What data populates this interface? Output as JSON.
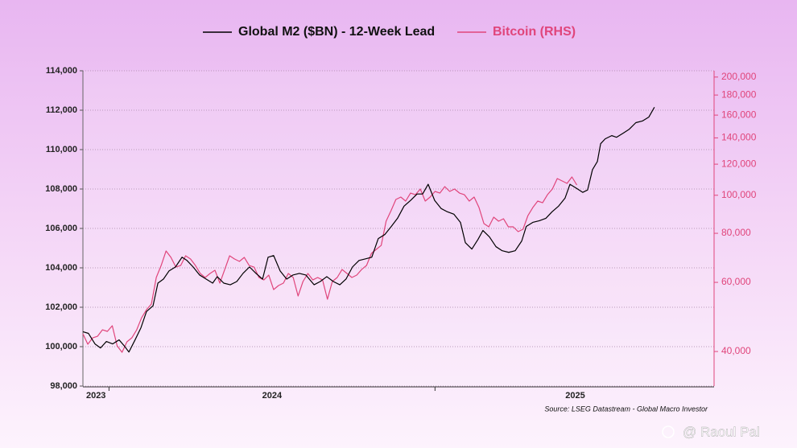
{
  "chart_data": {
    "type": "line",
    "legend": "top",
    "source": "Source: LSEG Datastream - Global Macro Investor",
    "watermark": "@ Raoul Pal",
    "grid": true,
    "xlim": [
      2023.92,
      2025.856
    ],
    "xticks": [
      {
        "value": 2023.96,
        "label": "2023"
      },
      {
        "value": 2024.5,
        "label": "2024"
      },
      {
        "value": 2025.43,
        "label": "2025"
      }
    ],
    "x_minor_ticks": [
      2024,
      2025
    ],
    "ylim": [
      98000,
      114000
    ],
    "yticks": [
      {
        "value": 98000,
        "label": "98,000"
      },
      {
        "value": 100000,
        "label": "100,000"
      },
      {
        "value": 102000,
        "label": "102,000"
      },
      {
        "value": 104000,
        "label": "104,000"
      },
      {
        "value": 106000,
        "label": "106,000"
      },
      {
        "value": 108000,
        "label": "108,000"
      },
      {
        "value": 110000,
        "label": "110,000"
      },
      {
        "value": 112000,
        "label": "112,000"
      },
      {
        "value": 114000,
        "label": "114,000"
      }
    ],
    "y2lim": [
      32660,
      207500
    ],
    "y2log": true,
    "y2color": "#e0457b",
    "y2ticks": [
      {
        "value": 40000,
        "label": "40,000"
      },
      {
        "value": 60000,
        "label": "60,000"
      },
      {
        "value": 80000,
        "label": "80,000"
      },
      {
        "value": 100000,
        "label": "100,000"
      },
      {
        "value": 120000,
        "label": "120,000"
      },
      {
        "value": 140000,
        "label": "140,000"
      },
      {
        "value": 160000,
        "label": "160,000"
      },
      {
        "value": 180000,
        "label": "180,000"
      },
      {
        "value": 200000,
        "label": "200,000"
      }
    ],
    "series": [
      {
        "name": "Global M2 ($BN) - 12-Week Lead",
        "color": "#000000",
        "x": [
          2023.92,
          2023.937,
          2023.957,
          2023.974,
          2023.992,
          2024.011,
          2024.031,
          2024.048,
          2024.061,
          2024.08,
          2024.098,
          2024.115,
          2024.135,
          2024.15,
          2024.167,
          2024.184,
          2024.204,
          2024.224,
          2024.239,
          2024.258,
          2024.278,
          2024.298,
          2024.318,
          2024.332,
          2024.352,
          2024.372,
          2024.392,
          2024.411,
          2024.431,
          2024.451,
          2024.471,
          2024.488,
          2024.505,
          2024.525,
          2024.545,
          2024.564,
          2024.584,
          2024.604,
          2024.629,
          2024.648,
          2024.668,
          2024.688,
          2024.708,
          2024.727,
          2024.747,
          2024.767,
          2024.787,
          2024.806,
          2024.826,
          2024.846,
          2024.866,
          2024.885,
          2024.905,
          2024.925,
          2024.945,
          2024.962,
          2024.979,
          2024.999,
          2025.019,
          2025.038,
          2025.058,
          2025.078,
          2025.093,
          2025.113,
          2025.132,
          2025.147,
          2025.167,
          2025.187,
          2025.206,
          2025.226,
          2025.246,
          2025.266,
          2025.28,
          2025.3,
          2025.32,
          2025.34,
          2025.359,
          2025.379,
          2025.399,
          2025.414,
          2025.434,
          2025.453,
          2025.468,
          2025.483,
          2025.498,
          2025.508,
          2025.522,
          2025.542,
          2025.557,
          2025.577,
          2025.596,
          2025.616,
          2025.636,
          2025.656,
          2025.673
        ],
        "values": [
          100756,
          100673,
          100139,
          99933,
          100262,
          100139,
          100344,
          100015,
          99727,
          100344,
          100961,
          101784,
          102072,
          103224,
          103429,
          103840,
          104046,
          104540,
          104375,
          104046,
          103635,
          103429,
          103224,
          103553,
          103224,
          103141,
          103306,
          103717,
          104046,
          103717,
          103429,
          104540,
          104622,
          103840,
          103429,
          103635,
          103717,
          103635,
          103141,
          103306,
          103553,
          103306,
          103141,
          103429,
          104046,
          104375,
          104457,
          104540,
          105486,
          105691,
          106103,
          106514,
          107131,
          107419,
          107748,
          107748,
          108241,
          107419,
          107007,
          106843,
          106720,
          106308,
          105280,
          104951,
          105445,
          105897,
          105568,
          105074,
          104869,
          104786,
          104869,
          105362,
          106103,
          106308,
          106391,
          106514,
          106843,
          107131,
          107542,
          108241,
          108036,
          107830,
          107953,
          108982,
          109393,
          110298,
          110545,
          110709,
          110627,
          110833,
          111038,
          111367,
          111450,
          111655,
          112149
        ]
      },
      {
        "name": "Bitcoin (RHS)",
        "color": "#e0457b",
        "axis": "y2",
        "x": [
          2023.92,
          2023.935,
          2023.95,
          2023.965,
          2023.98,
          2023.995,
          2024.01,
          2024.025,
          2024.04,
          2024.055,
          2024.07,
          2024.085,
          2024.1,
          2024.115,
          2024.13,
          2024.145,
          2024.16,
          2024.175,
          2024.19,
          2024.205,
          2024.22,
          2024.235,
          2024.25,
          2024.265,
          2024.28,
          2024.295,
          2024.31,
          2024.325,
          2024.34,
          2024.355,
          2024.37,
          2024.385,
          2024.4,
          2024.415,
          2024.43,
          2024.445,
          2024.46,
          2024.475,
          2024.49,
          2024.505,
          2024.52,
          2024.535,
          2024.55,
          2024.565,
          2024.58,
          2024.595,
          2024.61,
          2024.625,
          2024.64,
          2024.655,
          2024.67,
          2024.685,
          2024.7,
          2024.715,
          2024.73,
          2024.745,
          2024.76,
          2024.775,
          2024.79,
          2024.805,
          2024.82,
          2024.835,
          2024.85,
          2024.865,
          2024.88,
          2024.895,
          2024.91,
          2024.925,
          2024.94,
          2024.955,
          2024.97,
          2024.985,
          2025.0,
          2025.015,
          2025.03,
          2025.045,
          2025.06,
          2025.075,
          2025.09,
          2025.105,
          2025.12,
          2025.135,
          2025.15,
          2025.165,
          2025.18,
          2025.195,
          2025.21,
          2025.225,
          2025.24,
          2025.255,
          2025.27,
          2025.285,
          2025.3,
          2025.315,
          2025.33,
          2025.345,
          2025.36,
          2025.375,
          2025.39,
          2025.405,
          2025.42,
          2025.435
        ],
        "values": [
          44380,
          41740,
          43340,
          43750,
          45430,
          45010,
          46520,
          41340,
          39810,
          42330,
          43340,
          45430,
          48760,
          51120,
          52840,
          61740,
          66260,
          72130,
          69460,
          65640,
          66260,
          70120,
          68810,
          66260,
          63210,
          61740,
          63210,
          64410,
          59730,
          64710,
          70120,
          68810,
          67840,
          69460,
          66260,
          65640,
          61740,
          60860,
          62620,
          57520,
          58890,
          59730,
          63210,
          61740,
          55390,
          60300,
          63210,
          60860,
          61740,
          60860,
          54350,
          60300,
          61740,
          64710,
          63210,
          61740,
          62620,
          64710,
          66260,
          71120,
          72820,
          74550,
          85890,
          91320,
          97550,
          98940,
          96640,
          101300,
          100350,
          103720,
          96640,
          98940,
          102270,
          101300,
          105200,
          102270,
          103720,
          101300,
          100350,
          96640,
          98940,
          93050,
          84680,
          83100,
          87940,
          85890,
          87120,
          83100,
          83100,
          80780,
          81930,
          88770,
          93050,
          96640,
          95730,
          100350,
          103720,
          110290,
          108730,
          107200,
          111330,
          106200
        ]
      }
    ]
  }
}
